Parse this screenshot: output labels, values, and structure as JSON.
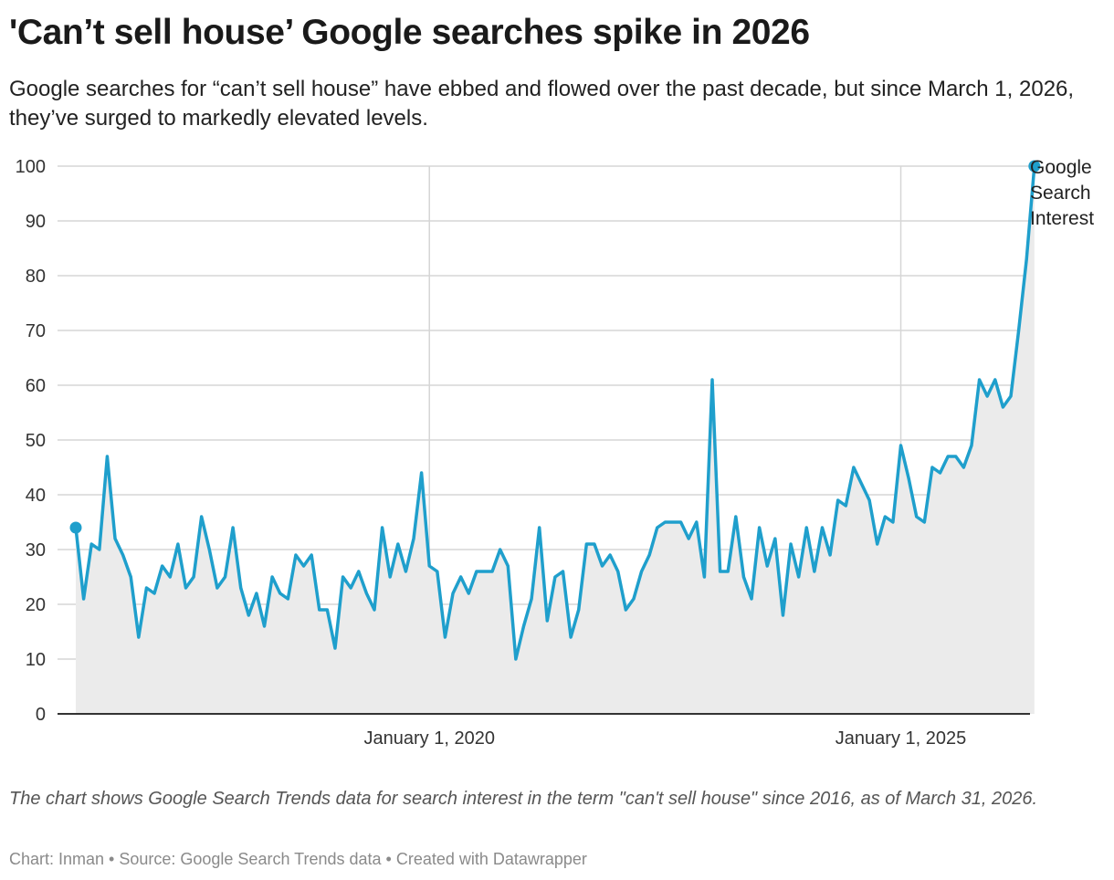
{
  "header": {
    "title": "'Can’t sell house’ Google searches spike in 2026",
    "subtitle": "Google searches for “can’t sell house” have ebbed and flowed over the past decade, but since March 1, 2026, they’ve surged to markedly elevated levels."
  },
  "footer": {
    "note": "The chart shows Google Search Trends data for search interest in the term \"can't sell house\" since 2016, as of March 31, 2026.",
    "source": "Chart: Inman • Source: Google Search Trends data • Created with Datawrapper"
  },
  "colors": {
    "line": "#1f9fcc",
    "area": "#ebebeb",
    "grid": "#d6d6d6",
    "axis": "#333333"
  },
  "chart_data": {
    "type": "area",
    "title": "'Can’t sell house’ Google searches spike in 2026",
    "xlabel": "",
    "ylabel": "",
    "ylim": [
      0,
      100
    ],
    "yticks": [
      0,
      10,
      20,
      30,
      40,
      50,
      60,
      70,
      80,
      90,
      100
    ],
    "xlim": [
      "2016-04-01",
      "2026-03-01"
    ],
    "xticks": [
      {
        "date": "2020-01-01",
        "label": "January 1, 2020"
      },
      {
        "date": "2025-01-01",
        "label": "January 1, 2025"
      }
    ],
    "grid": true,
    "legend": "right of last point",
    "series": [
      {
        "name": "Google Search Interest",
        "label_lines": [
          "Google",
          "Search",
          "Interest"
        ],
        "start": "2016-04",
        "frequency": "monthly",
        "values": [
          34,
          21,
          31,
          30,
          47,
          32,
          29,
          25,
          14,
          23,
          22,
          27,
          25,
          31,
          23,
          25,
          36,
          30,
          23,
          25,
          34,
          23,
          18,
          22,
          16,
          25,
          22,
          21,
          29,
          27,
          29,
          19,
          19,
          12,
          25,
          23,
          26,
          22,
          19,
          34,
          25,
          31,
          26,
          32,
          44,
          27,
          26,
          14,
          22,
          25,
          22,
          26,
          26,
          26,
          30,
          27,
          10,
          16,
          21,
          34,
          17,
          25,
          26,
          14,
          19,
          31,
          31,
          27,
          29,
          26,
          19,
          21,
          26,
          29,
          34,
          35,
          35,
          35,
          32,
          35,
          25,
          61,
          26,
          26,
          36,
          25,
          21,
          34,
          27,
          32,
          18,
          31,
          25,
          34,
          26,
          34,
          29,
          39,
          38,
          45,
          42,
          39,
          31,
          36,
          35,
          49,
          43,
          36,
          35,
          45,
          44,
          47,
          47,
          45,
          49,
          61,
          58,
          61,
          56,
          58,
          70,
          83,
          100
        ]
      }
    ]
  }
}
